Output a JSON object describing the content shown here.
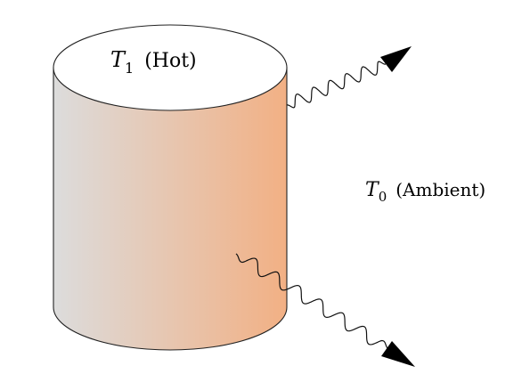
{
  "diagram": {
    "hot_body": {
      "symbol": "T",
      "subscript": "1",
      "annotation": "(Hot)",
      "fill_gradient": [
        "#dcdcdc",
        "#f2b084"
      ],
      "top_fill": "#ffffff",
      "stroke": "#222222"
    },
    "ambient": {
      "symbol": "T",
      "subscript": "0",
      "annotation": "(Ambient)"
    },
    "radiation": {
      "arrow_color": "#000000",
      "wave_color": "#111111"
    }
  }
}
